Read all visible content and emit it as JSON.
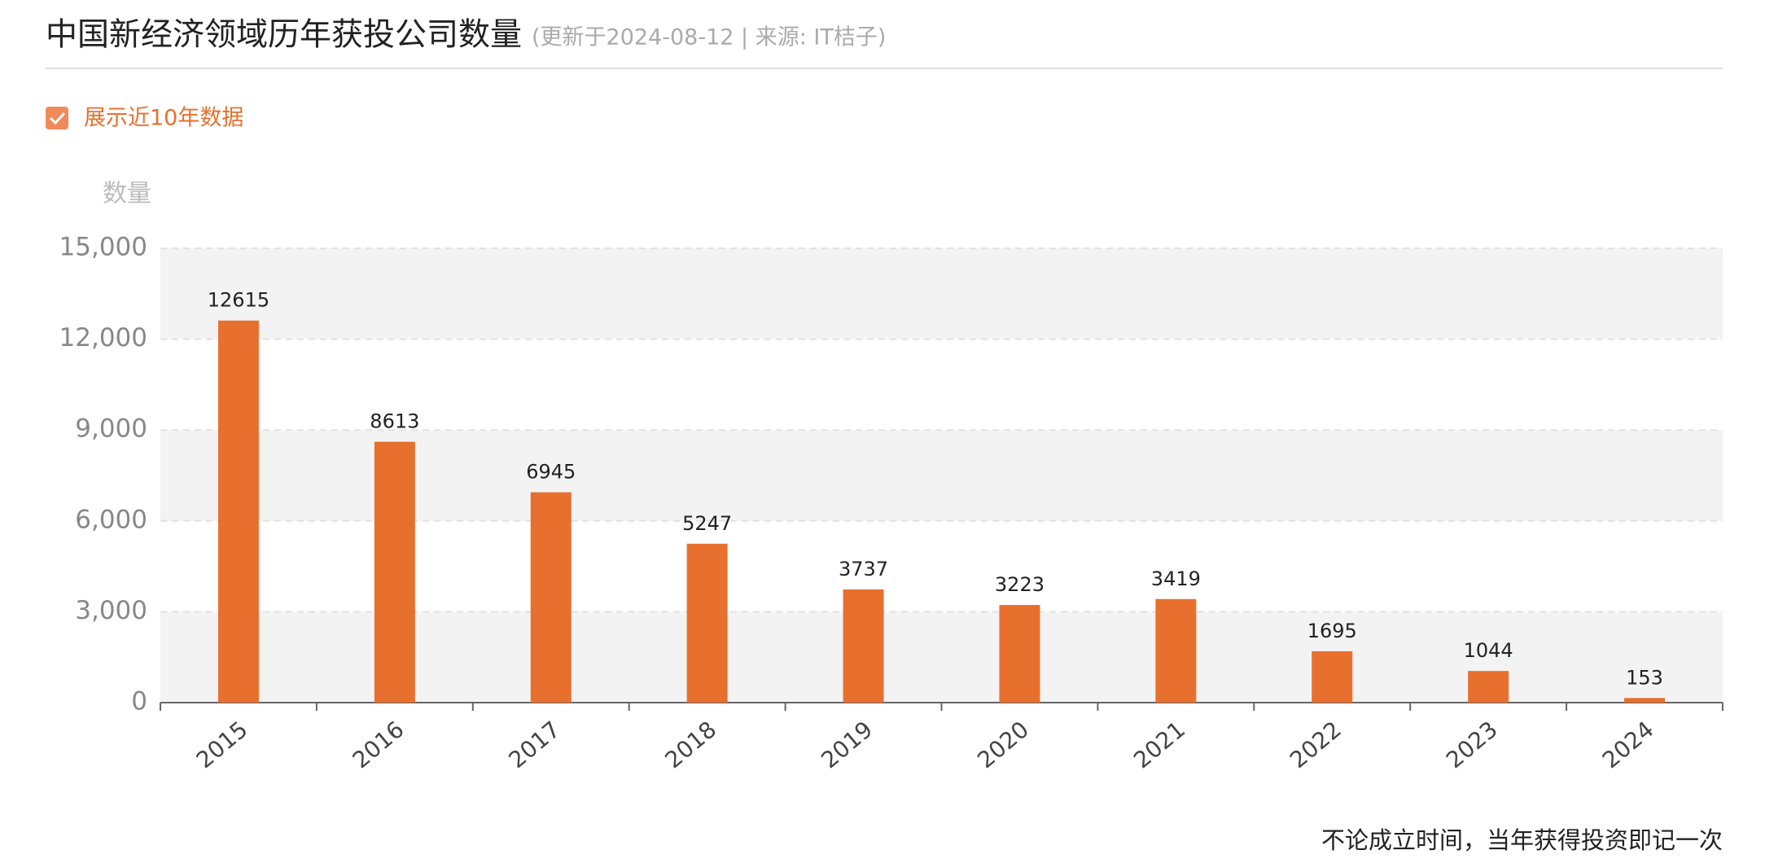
{
  "chart_data": {
    "type": "bar",
    "title": "中国新经济领域历年获投公司数量",
    "subtitle": "(更新于2024-08-12 | 来源: IT桔子)",
    "toggle": "展示近10年数据",
    "y_label": "数量",
    "footnote": "不论成立时间，当年获得投资即记一次",
    "categories": [
      "2015",
      "2016",
      "2017",
      "2018",
      "2019",
      "2020",
      "2021",
      "2022",
      "2023",
      "2024"
    ],
    "values": [
      12615,
      8613,
      6945,
      5247,
      3737,
      3223,
      3419,
      1695,
      1044,
      153
    ],
    "color": "#e8702e",
    "ylim": [
      0,
      15000
    ],
    "yticks": [
      0,
      {
        "value": 3000,
        "label": "3,000"
      },
      {
        "value": 6000,
        "label": "6,000"
      },
      {
        "value": 9000,
        "label": "9,000"
      },
      {
        "value": 12000,
        "label": "12,000"
      },
      {
        "value": 15000,
        "label": "15,000"
      }
    ],
    "grid": true
  }
}
